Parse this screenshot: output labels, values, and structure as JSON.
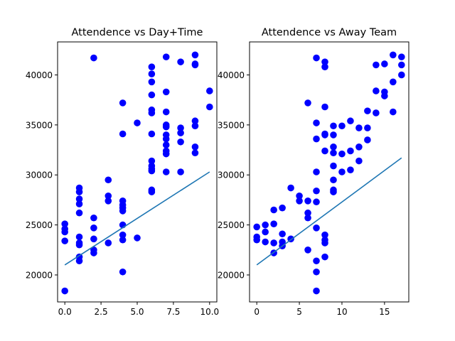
{
  "chart_data": [
    {
      "type": "scatter",
      "title": "Attendence vs Day+Time",
      "xlabel": "",
      "ylabel": "",
      "xlim": [
        -0.5,
        10.5
      ],
      "ylim": [
        17300,
        43300
      ],
      "xticks": [
        0.0,
        2.5,
        5.0,
        7.5,
        10.0
      ],
      "xtick_labels": [
        "0.0",
        "2.5",
        "5.0",
        "7.5",
        "10.0"
      ],
      "yticks": [
        20000,
        25000,
        30000,
        35000,
        40000
      ],
      "ytick_labels": [
        "20000",
        "25000",
        "30000",
        "35000",
        "40000"
      ],
      "grid": false,
      "marker_color": "#0000ff",
      "line_color": "#1f77b4",
      "points": [
        [
          0,
          25100
        ],
        [
          0,
          24600
        ],
        [
          0,
          24300
        ],
        [
          0,
          23400
        ],
        [
          0,
          18400
        ],
        [
          1,
          28700
        ],
        [
          1,
          28300
        ],
        [
          1,
          27600
        ],
        [
          1,
          27100
        ],
        [
          1,
          26200
        ],
        [
          1,
          23800
        ],
        [
          1,
          23200
        ],
        [
          1,
          23000
        ],
        [
          1,
          21800
        ],
        [
          1,
          21400
        ],
        [
          2,
          41700
        ],
        [
          2,
          25700
        ],
        [
          2,
          24700
        ],
        [
          2,
          23600
        ],
        [
          2,
          22500
        ],
        [
          2,
          22200
        ],
        [
          3,
          29500
        ],
        [
          3,
          27900
        ],
        [
          3,
          27400
        ],
        [
          3,
          23200
        ],
        [
          4,
          37200
        ],
        [
          4,
          34100
        ],
        [
          4,
          27400
        ],
        [
          4,
          27000
        ],
        [
          4,
          26700
        ],
        [
          4,
          26400
        ],
        [
          4,
          25000
        ],
        [
          4,
          24000
        ],
        [
          4,
          23500
        ],
        [
          4,
          20300
        ],
        [
          5,
          35200
        ],
        [
          5,
          23700
        ],
        [
          6,
          40800
        ],
        [
          6,
          40100
        ],
        [
          6,
          39300
        ],
        [
          6,
          38000
        ],
        [
          6,
          36500
        ],
        [
          6,
          36200
        ],
        [
          6,
          34100
        ],
        [
          6,
          31400
        ],
        [
          6,
          30900
        ],
        [
          6,
          30600
        ],
        [
          6,
          30400
        ],
        [
          6,
          28500
        ],
        [
          6,
          28300
        ],
        [
          7,
          41800
        ],
        [
          7,
          38300
        ],
        [
          7,
          36300
        ],
        [
          7,
          35000
        ],
        [
          7,
          34800
        ],
        [
          7,
          34000
        ],
        [
          7,
          33600
        ],
        [
          7,
          33000
        ],
        [
          7,
          32400
        ],
        [
          7,
          32100
        ],
        [
          7,
          30300
        ],
        [
          8,
          41300
        ],
        [
          8,
          34700
        ],
        [
          8,
          34200
        ],
        [
          8,
          33300
        ],
        [
          8,
          30300
        ],
        [
          9,
          42000
        ],
        [
          9,
          41100
        ],
        [
          9,
          41000
        ],
        [
          9,
          35400
        ],
        [
          9,
          34900
        ],
        [
          9,
          32800
        ],
        [
          9,
          32200
        ],
        [
          10,
          38400
        ],
        [
          10,
          36800
        ]
      ],
      "fit_line": {
        "x": [
          0,
          10
        ],
        "y": [
          21000,
          30300
        ]
      }
    },
    {
      "type": "scatter",
      "title": "Attendence vs Away Team",
      "xlabel": "",
      "ylabel": "",
      "xlim": [
        -0.85,
        17.85
      ],
      "ylim": [
        17300,
        43300
      ],
      "xticks": [
        0,
        5,
        10,
        15
      ],
      "xtick_labels": [
        "0",
        "5",
        "10",
        "15"
      ],
      "yticks": [
        20000,
        25000,
        30000,
        35000,
        40000
      ],
      "ytick_labels": [
        "20000",
        "25000",
        "30000",
        "35000",
        "40000"
      ],
      "grid": false,
      "marker_color": "#0000ff",
      "line_color": "#1f77b4",
      "points": [
        [
          0,
          24800
        ],
        [
          0,
          23800
        ],
        [
          0,
          23500
        ],
        [
          1,
          25000
        ],
        [
          1,
          24300
        ],
        [
          1,
          23300
        ],
        [
          2,
          26500
        ],
        [
          2,
          25100
        ],
        [
          2,
          23200
        ],
        [
          2,
          22200
        ],
        [
          3,
          26700
        ],
        [
          3,
          24100
        ],
        [
          3,
          23300
        ],
        [
          3,
          22900
        ],
        [
          4,
          28700
        ],
        [
          4,
          23600
        ],
        [
          5,
          27900
        ],
        [
          5,
          27400
        ],
        [
          6,
          37200
        ],
        [
          6,
          27400
        ],
        [
          6,
          26200
        ],
        [
          6,
          25700
        ],
        [
          6,
          22500
        ],
        [
          7,
          41700
        ],
        [
          7,
          35200
        ],
        [
          7,
          33600
        ],
        [
          7,
          30300
        ],
        [
          7,
          28400
        ],
        [
          7,
          27300
        ],
        [
          7,
          24700
        ],
        [
          7,
          21400
        ],
        [
          7,
          20300
        ],
        [
          7,
          18400
        ],
        [
          8,
          41300
        ],
        [
          8,
          40800
        ],
        [
          8,
          36800
        ],
        [
          8,
          34100
        ],
        [
          8,
          34000
        ],
        [
          8,
          32400
        ],
        [
          8,
          24000
        ],
        [
          8,
          23500
        ],
        [
          8,
          23200
        ],
        [
          8,
          21800
        ],
        [
          9,
          34900
        ],
        [
          9,
          34000
        ],
        [
          9,
          32800
        ],
        [
          9,
          32200
        ],
        [
          9,
          30900
        ],
        [
          9,
          29500
        ],
        [
          9,
          28500
        ],
        [
          9,
          28300
        ],
        [
          10,
          34900
        ],
        [
          10,
          32100
        ],
        [
          10,
          30300
        ],
        [
          11,
          35400
        ],
        [
          11,
          32400
        ],
        [
          11,
          30500
        ],
        [
          12,
          34700
        ],
        [
          12,
          32800
        ],
        [
          12,
          31400
        ],
        [
          13,
          36400
        ],
        [
          13,
          34700
        ],
        [
          13,
          33500
        ],
        [
          14,
          41000
        ],
        [
          14,
          38400
        ],
        [
          14,
          36200
        ],
        [
          15,
          41100
        ],
        [
          15,
          38300
        ],
        [
          15,
          37900
        ],
        [
          16,
          42000
        ],
        [
          16,
          39300
        ],
        [
          16,
          36300
        ],
        [
          17,
          41800
        ],
        [
          17,
          41000
        ],
        [
          17,
          40000
        ]
      ],
      "fit_line": {
        "x": [
          0,
          17
        ],
        "y": [
          21000,
          31700
        ]
      }
    }
  ]
}
